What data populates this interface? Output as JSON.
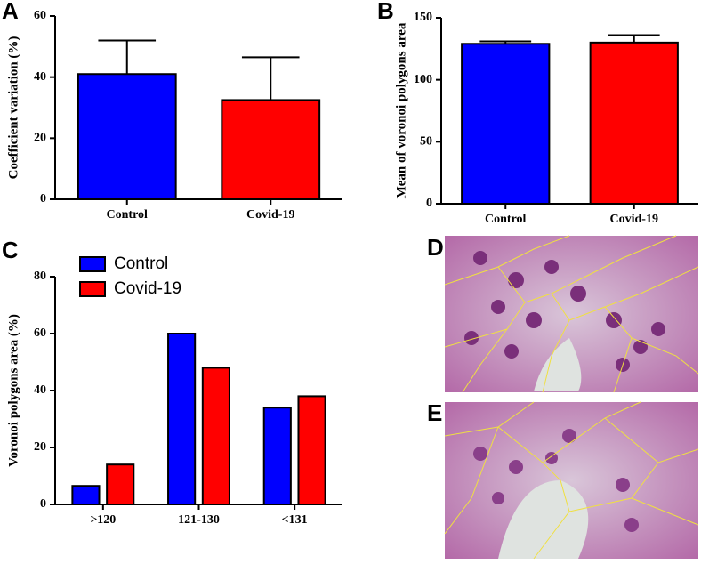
{
  "chart_data": [
    {
      "type": "bar",
      "panel": "A",
      "ylabel": "Coefficient variation (%)",
      "categories": [
        "Control",
        "Covid-19"
      ],
      "values": [
        41,
        32.5
      ],
      "errors": [
        11,
        14
      ],
      "colors": [
        "#0000ff",
        "#ff0000"
      ],
      "ylim": [
        0,
        60
      ],
      "yticks": [
        0,
        20,
        40,
        60
      ]
    },
    {
      "type": "bar",
      "panel": "B",
      "ylabel": "Mean of voronoi polygons area",
      "categories": [
        "Control",
        "Covid-19"
      ],
      "values": [
        129,
        130
      ],
      "errors": [
        2,
        6
      ],
      "colors": [
        "#0000ff",
        "#ff0000"
      ],
      "ylim": [
        0,
        150
      ],
      "yticks": [
        0,
        50,
        100,
        150
      ]
    },
    {
      "type": "grouped-bar",
      "panel": "C",
      "ylabel": "Voronoi polygons area (%)",
      "categories": [
        ">120",
        "121-130",
        "<131"
      ],
      "series": [
        {
          "name": "Control",
          "color": "#0000ff",
          "values": [
            6.5,
            60,
            34
          ]
        },
        {
          "name": "Covid-19",
          "color": "#ff0000",
          "values": [
            14,
            48,
            38
          ]
        }
      ],
      "ylim": [
        0,
        80
      ],
      "yticks": [
        0,
        20,
        40,
        60,
        80
      ],
      "legend": "upper left"
    }
  ],
  "images": [
    {
      "label": "D"
    },
    {
      "label": "E"
    }
  ]
}
